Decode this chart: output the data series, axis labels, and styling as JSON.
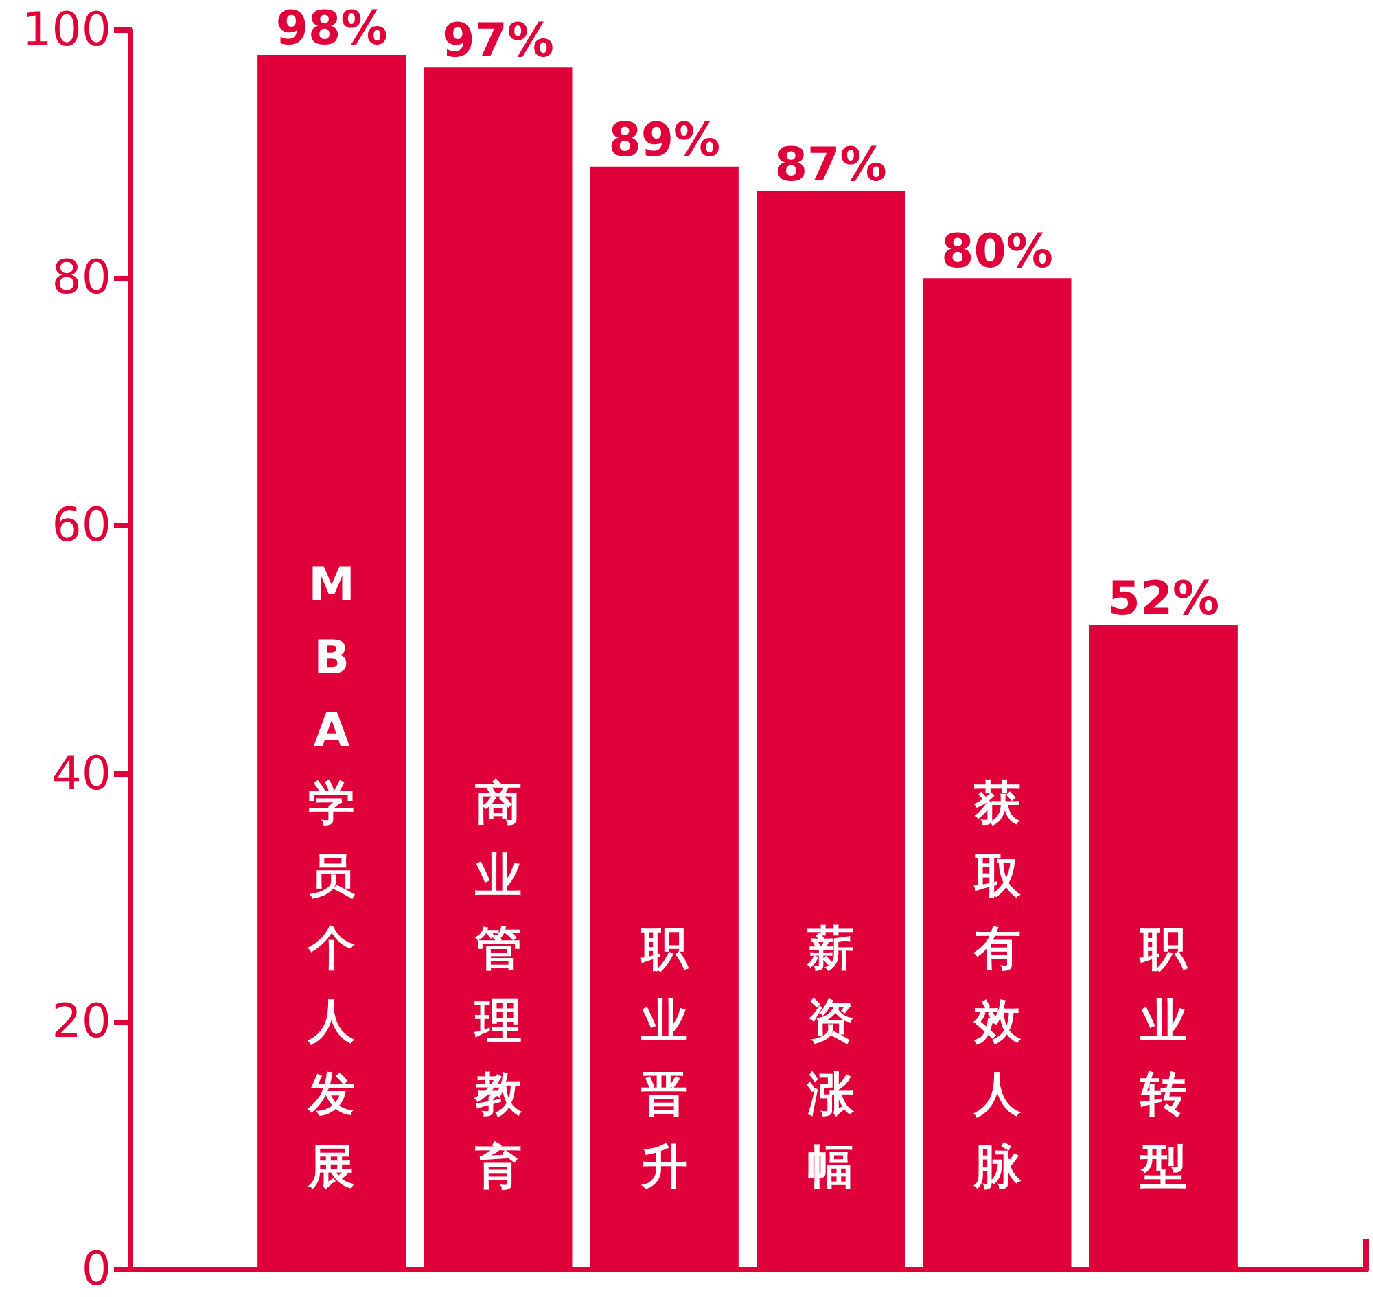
{
  "chart_data": {
    "type": "bar",
    "categories": [
      "MBA学员个人发展",
      "商业管理教育",
      "职业晋升",
      "薪资涨幅",
      "获取有效人脉",
      "职业转型"
    ],
    "values": [
      98,
      97,
      89,
      87,
      80,
      52
    ],
    "value_labels": [
      "98%",
      "97%",
      "89%",
      "87%",
      "80%",
      "52%"
    ],
    "color": "#e0003a",
    "ylim": [
      0,
      100
    ],
    "yticks": [
      0,
      20,
      40,
      60,
      80,
      100
    ],
    "grid": false
  }
}
